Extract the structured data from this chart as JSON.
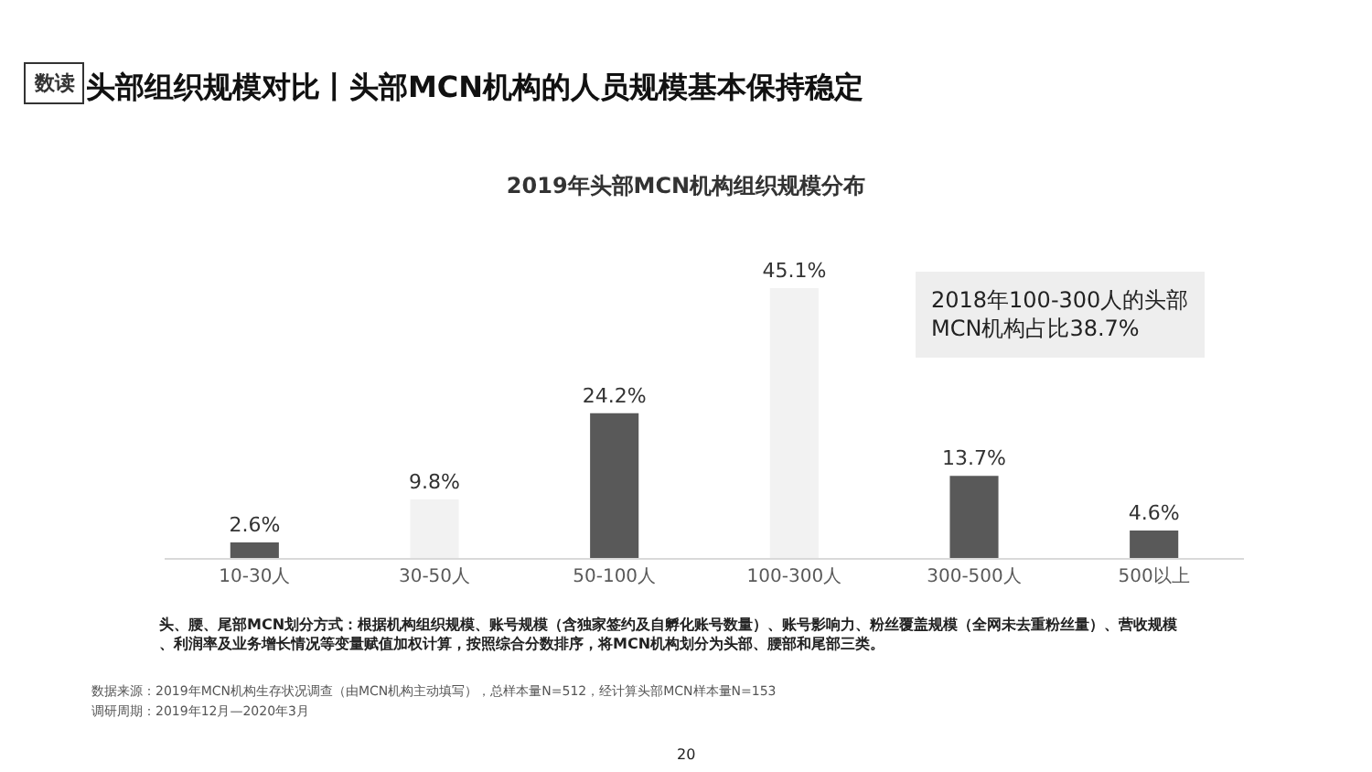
{
  "chart_data": {
    "type": "bar",
    "title": "2019年头部MCN机构组织规模分布",
    "categories": [
      "10-30人",
      "30-50人",
      "50-100人",
      "100-300人",
      "300-500人",
      "500以上"
    ],
    "values": [
      2.6,
      9.8,
      24.2,
      45.1,
      13.7,
      4.6
    ],
    "value_labels": [
      "2.6%",
      "9.8%",
      "24.2%",
      "45.1%",
      "13.7%",
      "4.6%"
    ],
    "colors": [
      "#595959",
      "#f2f2f2",
      "#595959",
      "#f2f2f2",
      "#595959",
      "#595959"
    ],
    "annotations": [
      "数读",
      "头部组织规模对比丨头部MCN机构的人员规模基本保持稳定",
      "2018年100-300人的头部MCN机构占比38.7%",
      "头、腰、尾部MCN划分方式：根据机构组织规模、账号规模（含独家签约及自孵化账号数量）、账号影响力、粉丝覆盖规模（全网未去重粉丝量）、营收规模、利润率及业务增长情况等变量赋值加权计算，按照综合分数排序，将MCN机构划分为头部、腰部和尾部三类。",
      "数据来源：2019年MCN机构生存状况调查（由MCN机构主动填写），总样本量N=512，经计算头部MCN样本量N=153",
      "调研周期：2019年12月—2020年3月",
      "20"
    ],
    "legend": false
  }
}
